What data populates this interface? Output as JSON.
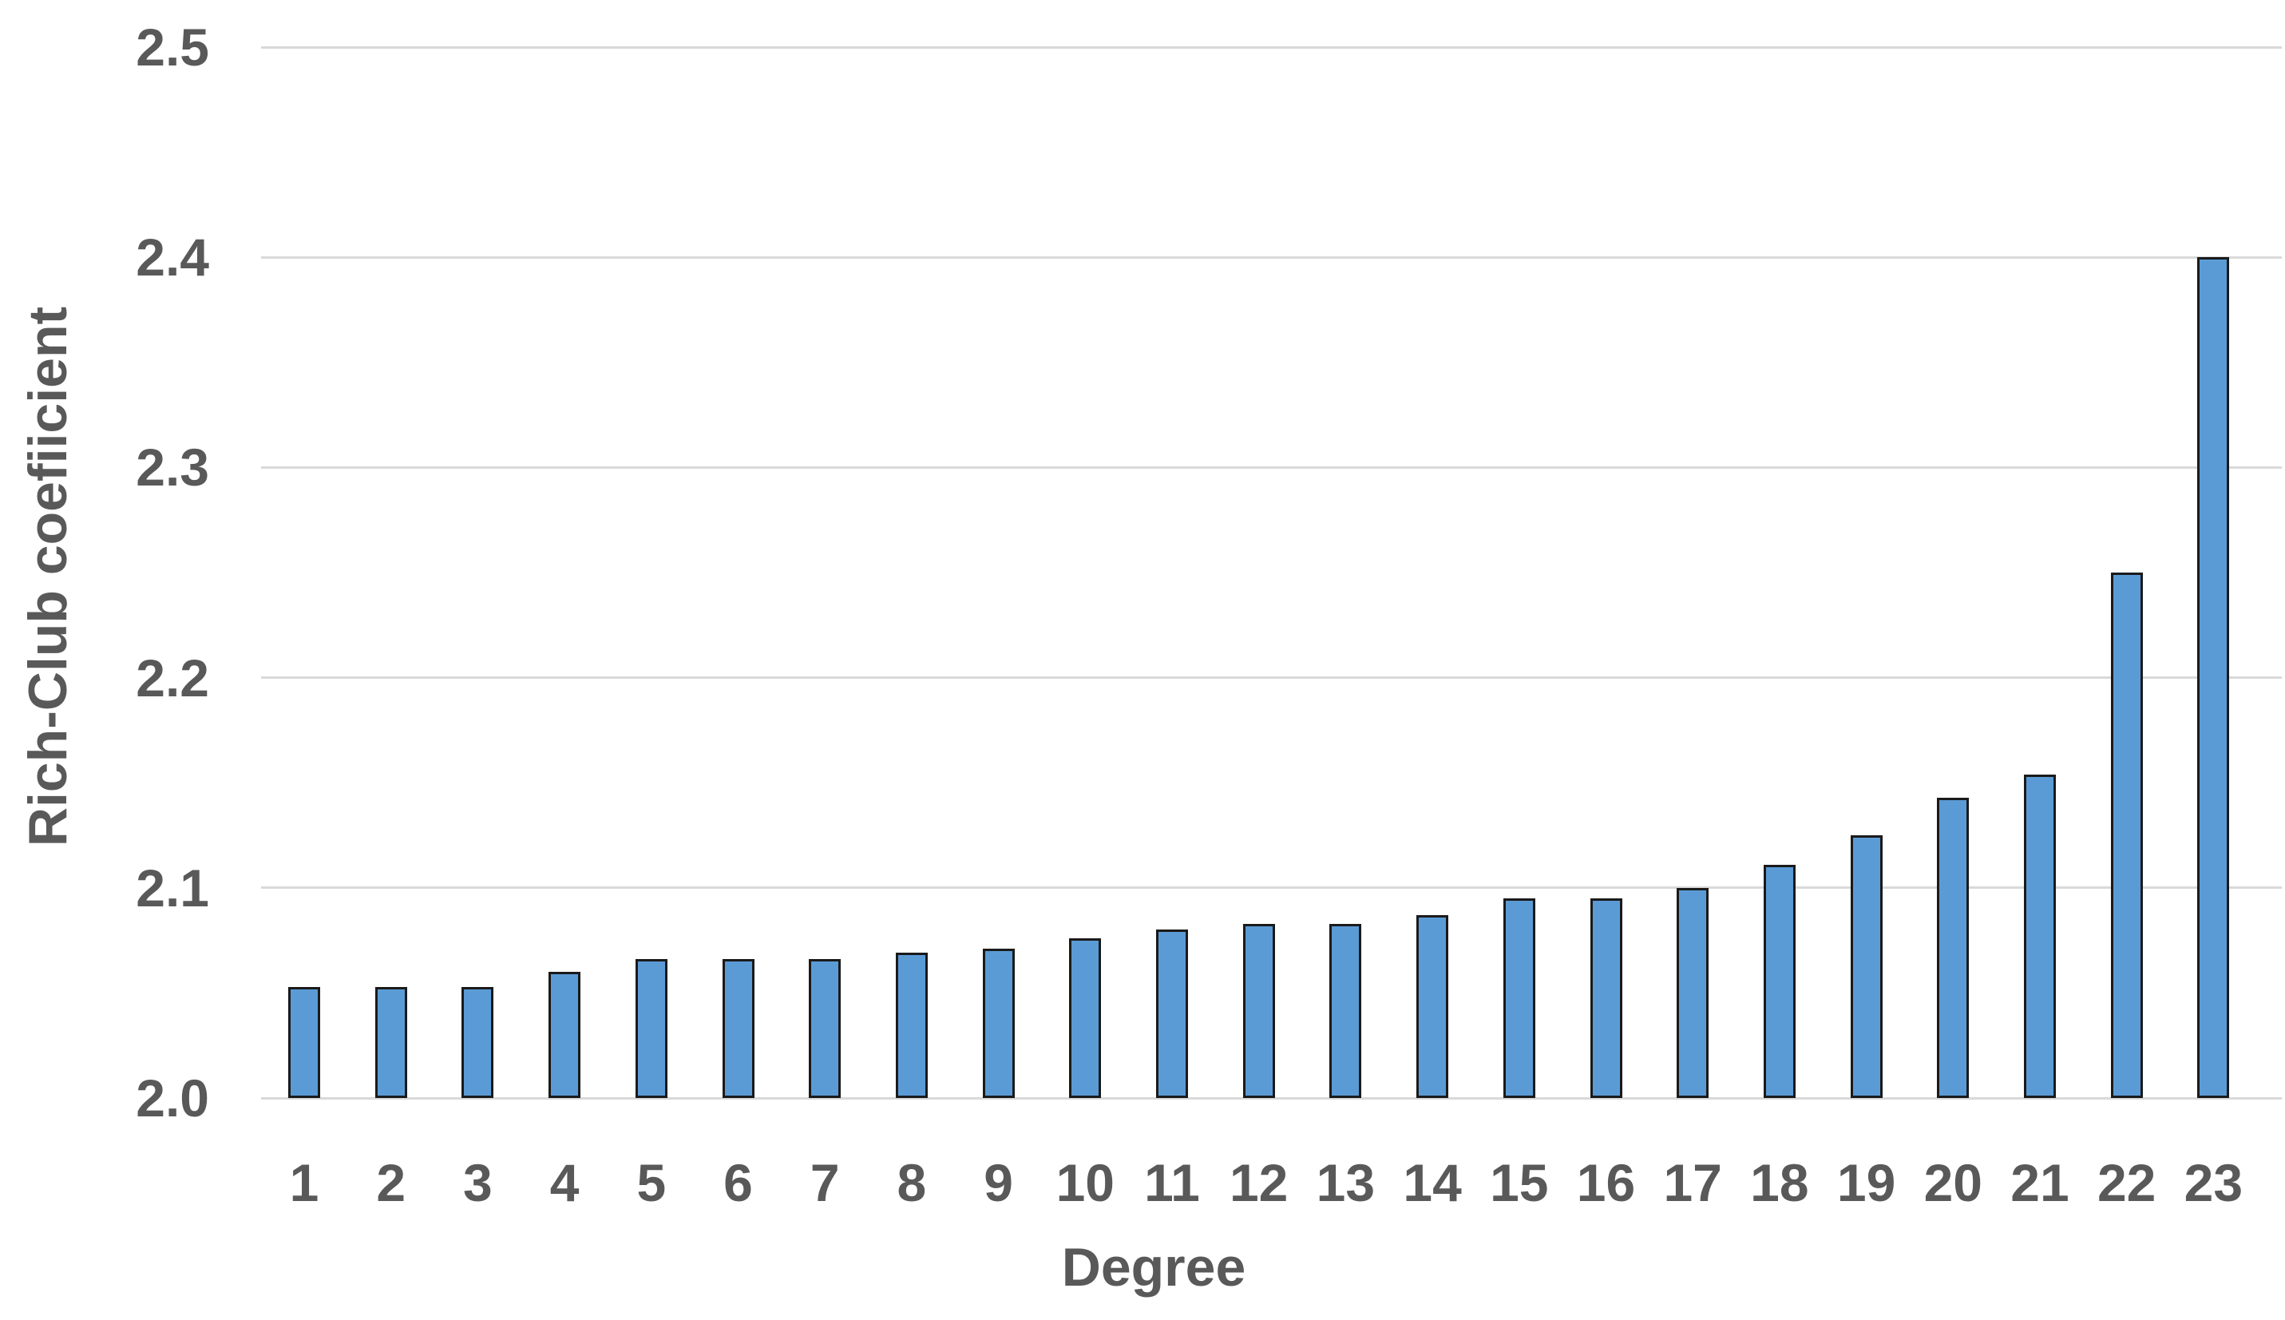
{
  "chart_data": {
    "type": "bar",
    "title": "",
    "xlabel": "Degree",
    "ylabel": "Rich-Club coefiicient",
    "categories": [
      "1",
      "2",
      "3",
      "4",
      "5",
      "6",
      "7",
      "8",
      "9",
      "10",
      "11",
      "12",
      "13",
      "14",
      "15",
      "16",
      "17",
      "18",
      "19",
      "20",
      "21",
      "22",
      "23"
    ],
    "values": [
      2.053,
      2.053,
      2.053,
      2.06,
      2.066,
      2.066,
      2.066,
      2.069,
      2.071,
      2.076,
      2.08,
      2.083,
      2.083,
      2.087,
      2.095,
      2.095,
      2.1,
      2.111,
      2.125,
      2.143,
      2.154,
      2.25,
      2.4
    ],
    "ylim": [
      2.0,
      2.5
    ],
    "yticks": [
      2.0,
      2.1,
      2.2,
      2.3,
      2.4,
      2.5
    ],
    "ytick_decimals": 1,
    "grid": "horizontal-only",
    "legend": "none",
    "colors": {
      "bar_fill": "#5B9BD5",
      "bar_border": "#1a1a1a",
      "gridline": "#D9D9D9",
      "text": "#595959",
      "background": "#FFFFFF"
    }
  }
}
